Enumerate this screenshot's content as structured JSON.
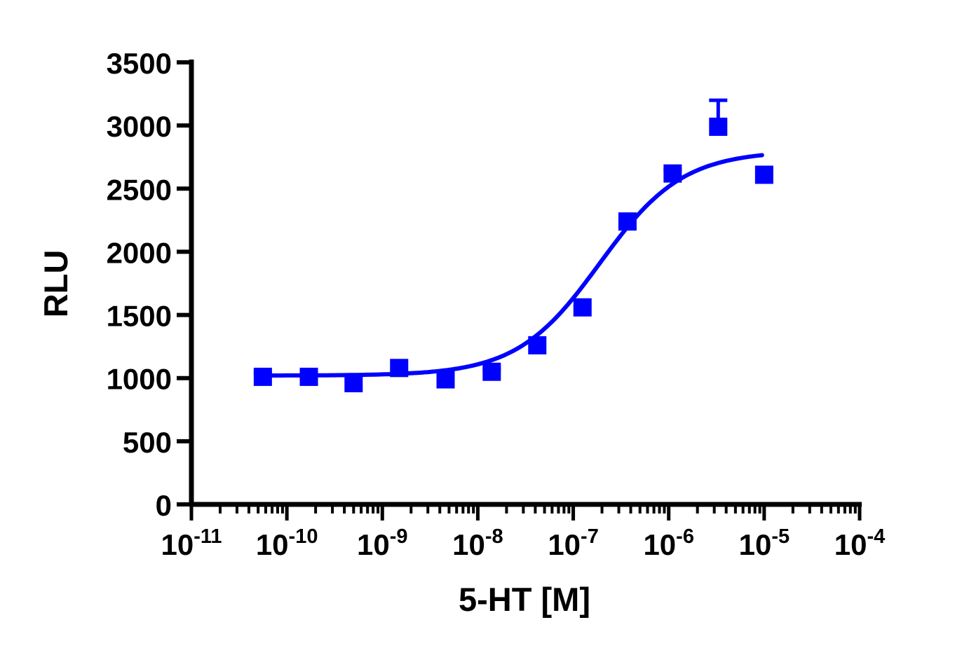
{
  "chart_data": {
    "type": "scatter",
    "xscale": "log",
    "xlabel": "5-HT [M]",
    "ylabel": "RLU",
    "xlim": [
      1e-11,
      0.0001
    ],
    "ylim": [
      0,
      3500
    ],
    "grid": false,
    "color": "#0000ff",
    "marker": "square",
    "yticks": [
      "0",
      "500",
      "1000",
      "1500",
      "2000",
      "2500",
      "3000",
      "3500"
    ],
    "yticks_values": [
      0,
      500,
      1000,
      1500,
      2000,
      2500,
      3000,
      3500
    ],
    "xticks": [
      {
        "base": "10",
        "exp": "-11",
        "value": 1e-11
      },
      {
        "base": "10",
        "exp": "-10",
        "value": 1e-10
      },
      {
        "base": "10",
        "exp": "-9",
        "value": 1e-09
      },
      {
        "base": "10",
        "exp": "-8",
        "value": 1e-08
      },
      {
        "base": "10",
        "exp": "-7",
        "value": 1e-07
      },
      {
        "base": "10",
        "exp": "-6",
        "value": 1e-06
      },
      {
        "base": "10",
        "exp": "-5",
        "value": 1e-05
      },
      {
        "base": "10",
        "exp": "-4",
        "value": 0.0001
      }
    ],
    "points": [
      {
        "x": 5.6e-11,
        "y": 1010,
        "err": 30
      },
      {
        "x": 1.7e-10,
        "y": 1010,
        "err": 0
      },
      {
        "x": 5e-10,
        "y": 960,
        "err": 0
      },
      {
        "x": 1.5e-09,
        "y": 1080,
        "err": 0
      },
      {
        "x": 4.6e-09,
        "y": 990,
        "err": 0
      },
      {
        "x": 1.4e-08,
        "y": 1050,
        "err": 20
      },
      {
        "x": 4.2e-08,
        "y": 1260,
        "err": 0
      },
      {
        "x": 1.25e-07,
        "y": 1560,
        "err": 0
      },
      {
        "x": 3.7e-07,
        "y": 2240,
        "err": 0
      },
      {
        "x": 1.1e-06,
        "y": 2620,
        "err": 30
      },
      {
        "x": 3.3e-06,
        "y": 2990,
        "err": 210
      },
      {
        "x": 1e-05,
        "y": 2610,
        "err": 0
      }
    ],
    "fit": {
      "model": "sigmoidal dose-response",
      "bottom": 1020,
      "top": 2800,
      "ec50": 1.9e-07,
      "hill": 1.0,
      "x_range": [
        5.6e-11,
        9.5e-06
      ]
    }
  }
}
